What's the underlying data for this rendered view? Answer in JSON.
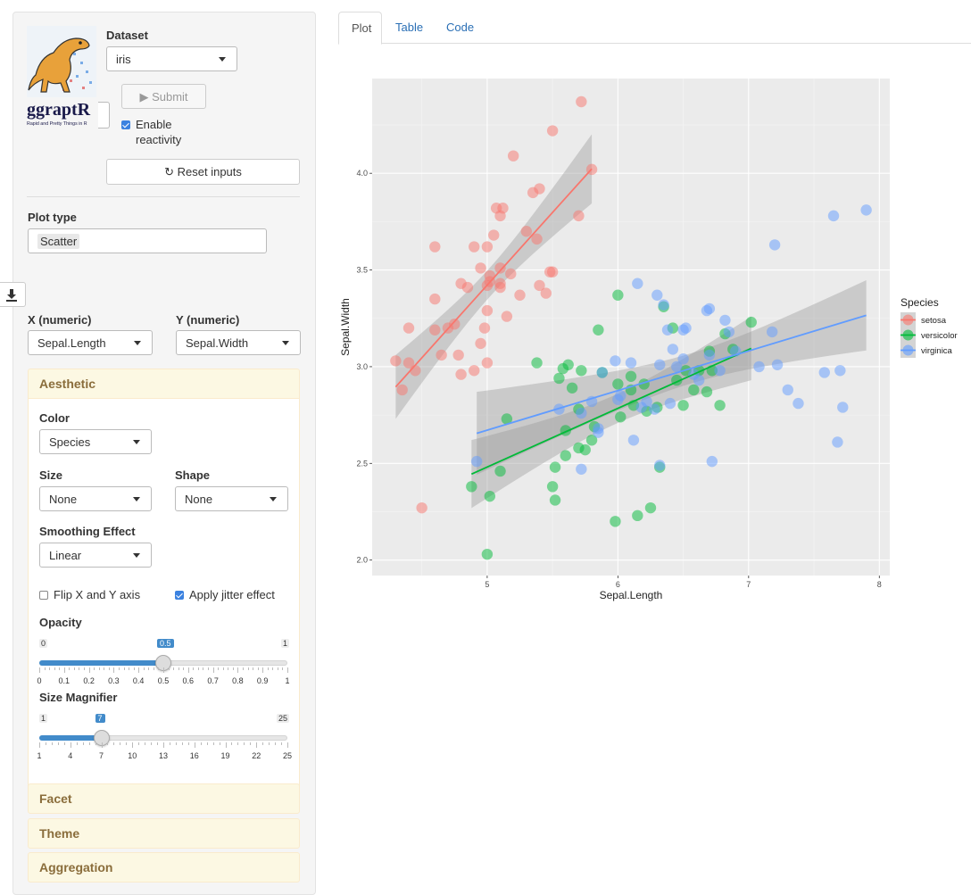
{
  "sidebar": {
    "logo": {
      "title": "ggraptR",
      "tagline": "Rapid and Pretty Things in R"
    },
    "dataset_label": "Dataset",
    "dataset_value": "iris",
    "submit_label": "Submit",
    "enable_reactivity_label_1": "Enable",
    "enable_reactivity_label_2": "reactivity",
    "reset_label": "Reset inputs",
    "plot_type_label": "Plot type",
    "plot_type_value": "Scatter",
    "x_label": "X (numeric)",
    "x_value": "Sepal.Length",
    "y_label": "Y (numeric)",
    "y_value": "Sepal.Width",
    "aesthetic": {
      "title": "Aesthetic",
      "color_label": "Color",
      "color_value": "Species",
      "size_label": "Size",
      "size_value": "None",
      "shape_label": "Shape",
      "shape_value": "None",
      "smoothing_label": "Smoothing Effect",
      "smoothing_value": "Linear",
      "flip_label": "Flip X and Y axis",
      "flip_checked": false,
      "jitter_label": "Apply jitter effect",
      "jitter_checked": true,
      "opacity": {
        "label": "Opacity",
        "min": "0",
        "max": "1",
        "value": "0.5",
        "fraction": 0.5,
        "ticks": [
          "0",
          "0.1",
          "0.2",
          "0.3",
          "0.4",
          "0.5",
          "0.6",
          "0.7",
          "0.8",
          "0.9",
          "1"
        ]
      },
      "size_mag": {
        "label": "Size Magnifier",
        "min": "1",
        "max": "25",
        "value": "7",
        "fraction": 0.25,
        "ticks": [
          "1",
          "4",
          "7",
          "10",
          "13",
          "16",
          "19",
          "22",
          "25"
        ]
      }
    },
    "facet_label": "Facet",
    "theme_label": "Theme",
    "aggregation_label": "Aggregation"
  },
  "tabs": [
    "Plot",
    "Table",
    "Code"
  ],
  "chart_data": {
    "type": "scatter",
    "xlabel": "Sepal.Length",
    "ylabel": "Sepal.Width",
    "xlim": [
      4.3,
      8.0
    ],
    "ylim": [
      2.0,
      4.4
    ],
    "xticks": [
      5,
      6,
      7,
      8
    ],
    "yticks": [
      "2.0",
      "2.5",
      "3.0",
      "3.5",
      "4.0"
    ],
    "grid": true,
    "legend_title": "Species",
    "legend_position": "right",
    "opacity": 0.5,
    "smooth": "linear",
    "series": [
      {
        "name": "setosa",
        "color": "#F8766D",
        "x": [
          4.3,
          4.35,
          4.4,
          4.45,
          4.5,
          4.6,
          4.6,
          4.65,
          4.7,
          4.75,
          4.78,
          4.8,
          4.8,
          4.85,
          4.9,
          4.9,
          4.95,
          4.98,
          5.0,
          5.0,
          5.0,
          5.0,
          5.02,
          5.02,
          5.05,
          5.07,
          5.1,
          5.1,
          5.1,
          5.12,
          5.15,
          5.18,
          5.2,
          5.25,
          5.3,
          5.35,
          5.38,
          5.4,
          5.4,
          5.45,
          5.48,
          5.5,
          5.5,
          5.7,
          5.72,
          5.8,
          5.1,
          4.95,
          4.6,
          4.4
        ],
        "y": [
          3.03,
          2.88,
          3.2,
          2.98,
          2.27,
          3.62,
          3.35,
          3.06,
          3.2,
          3.22,
          3.06,
          2.96,
          3.43,
          3.41,
          2.98,
          3.62,
          3.12,
          3.2,
          3.42,
          3.02,
          3.29,
          3.62,
          3.47,
          3.44,
          3.68,
          3.82,
          3.78,
          3.51,
          3.41,
          3.82,
          3.26,
          3.48,
          4.09,
          3.37,
          3.7,
          3.9,
          3.66,
          3.42,
          3.92,
          3.38,
          3.49,
          4.22,
          3.49,
          3.78,
          4.37,
          4.02,
          3.43,
          3.51,
          3.19,
          3.02
        ]
      },
      {
        "name": "versicolor",
        "color": "#00BA38",
        "x": [
          4.88,
          5.02,
          5.0,
          5.1,
          5.15,
          5.38,
          5.5,
          5.52,
          5.55,
          5.58,
          5.6,
          5.6,
          5.62,
          5.65,
          5.7,
          5.7,
          5.72,
          5.75,
          5.8,
          5.82,
          5.85,
          5.88,
          5.98,
          6.0,
          6.0,
          6.02,
          6.1,
          6.1,
          6.12,
          6.15,
          6.2,
          6.22,
          6.25,
          6.3,
          6.32,
          6.35,
          6.42,
          6.45,
          6.5,
          6.52,
          6.58,
          6.62,
          6.68,
          6.7,
          6.72,
          6.78,
          6.82,
          6.88,
          7.02,
          5.52
        ],
        "y": [
          2.38,
          2.33,
          2.03,
          2.46,
          2.73,
          3.02,
          2.38,
          2.48,
          2.94,
          2.99,
          2.54,
          2.67,
          3.01,
          2.89,
          2.78,
          2.58,
          2.98,
          2.57,
          2.62,
          2.69,
          3.19,
          2.97,
          2.2,
          2.91,
          3.37,
          2.74,
          2.95,
          2.88,
          2.8,
          2.23,
          2.91,
          2.77,
          2.27,
          2.79,
          2.48,
          3.31,
          3.2,
          2.93,
          2.8,
          2.98,
          2.88,
          2.98,
          2.87,
          3.08,
          2.98,
          2.8,
          3.17,
          3.09,
          3.23,
          2.31
        ]
      },
      {
        "name": "virginica",
        "color": "#619CFF",
        "x": [
          4.92,
          5.55,
          5.72,
          5.8,
          5.85,
          5.88,
          5.98,
          6.0,
          6.1,
          6.12,
          6.15,
          6.18,
          6.22,
          6.28,
          6.3,
          6.32,
          6.35,
          6.38,
          6.4,
          6.42,
          6.45,
          6.5,
          6.5,
          6.52,
          6.62,
          6.68,
          6.7,
          6.72,
          6.78,
          6.82,
          6.85,
          6.9,
          7.08,
          7.18,
          7.2,
          7.22,
          7.3,
          7.38,
          7.58,
          7.68,
          7.7,
          7.72,
          7.65,
          7.9,
          6.58,
          6.7,
          6.02,
          6.32,
          5.85,
          5.72
        ],
        "y": [
          2.51,
          2.78,
          2.47,
          2.82,
          2.68,
          2.97,
          3.03,
          2.83,
          3.02,
          2.62,
          3.43,
          2.79,
          2.82,
          2.78,
          3.37,
          2.49,
          3.32,
          3.19,
          2.81,
          3.09,
          3.0,
          3.19,
          3.04,
          3.2,
          2.93,
          3.29,
          3.3,
          2.51,
          2.98,
          3.24,
          3.18,
          3.08,
          3.0,
          3.18,
          3.63,
          3.01,
          2.88,
          2.81,
          2.97,
          2.61,
          2.98,
          2.79,
          3.78,
          3.81,
          2.96,
          3.06,
          2.85,
          3.01,
          2.66,
          2.76
        ]
      }
    ]
  }
}
